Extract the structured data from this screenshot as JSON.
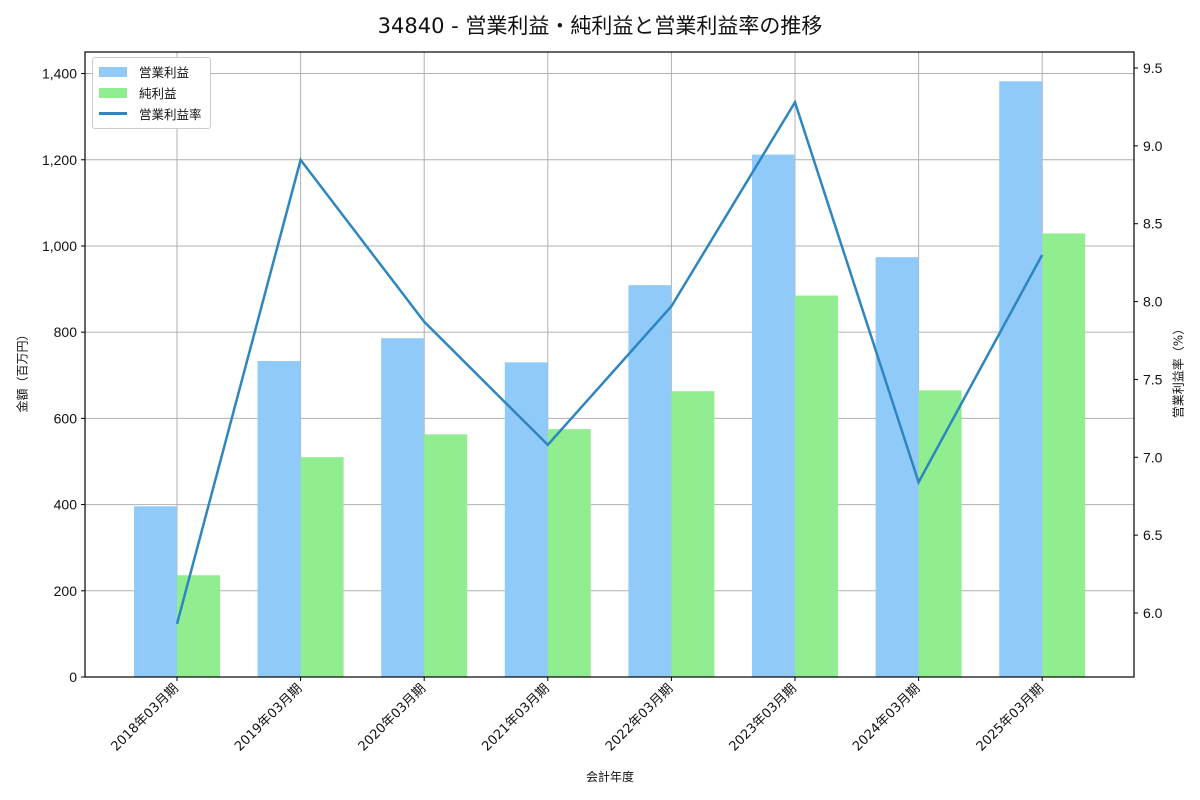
{
  "title": "34840 - 営業利益・純利益と営業利益率の推移",
  "legend": {
    "items": [
      {
        "label": "営業利益",
        "color": "#90caf9",
        "kind": "bar"
      },
      {
        "label": "純利益",
        "color": "#90ee90",
        "kind": "bar"
      },
      {
        "label": "営業利益率",
        "color": "#2e86c1",
        "kind": "line"
      }
    ]
  },
  "axes": {
    "xlabel": "会計年度",
    "ylabel_left": "金額（百万円）",
    "ylabel_right": "営業利益率（%）",
    "left_ticks": [
      "0",
      "200",
      "400",
      "600",
      "800",
      "1,000",
      "1,200",
      "1,400"
    ],
    "right_ticks": [
      "6.0",
      "6.5",
      "7.0",
      "7.5",
      "8.0",
      "8.5",
      "9.0",
      "9.5"
    ]
  },
  "chart_data": {
    "type": "bar",
    "title": "34840 - 営業利益・純利益と営業利益率の推移",
    "xlabel": "会計年度",
    "ylabel": "金額（百万円）",
    "ylabel_right": "営業利益率（%）",
    "categories": [
      "2018年03月期",
      "2019年03月期",
      "2020年03月期",
      "2021年03月期",
      "2022年03月期",
      "2023年03月期",
      "2024年03月期",
      "2025年03月期"
    ],
    "series": [
      {
        "name": "営業利益",
        "type": "bar",
        "axis": "left",
        "color": "#90caf9",
        "values": [
          396,
          733,
          786,
          730,
          909,
          1212,
          974,
          1382
        ]
      },
      {
        "name": "純利益",
        "type": "bar",
        "axis": "left",
        "color": "#90ee90",
        "values": [
          236,
          510,
          563,
          575,
          663,
          885,
          665,
          1029
        ]
      },
      {
        "name": "営業利益率",
        "type": "line",
        "axis": "right",
        "color": "#2e86c1",
        "values": [
          5.93,
          8.91,
          7.87,
          7.08,
          7.97,
          9.28,
          6.84,
          8.3
        ]
      }
    ],
    "ylim": [
      0,
      1450
    ],
    "ylim_right": [
      5.6,
      9.6
    ],
    "grid": true,
    "legend_position": "upper left"
  }
}
